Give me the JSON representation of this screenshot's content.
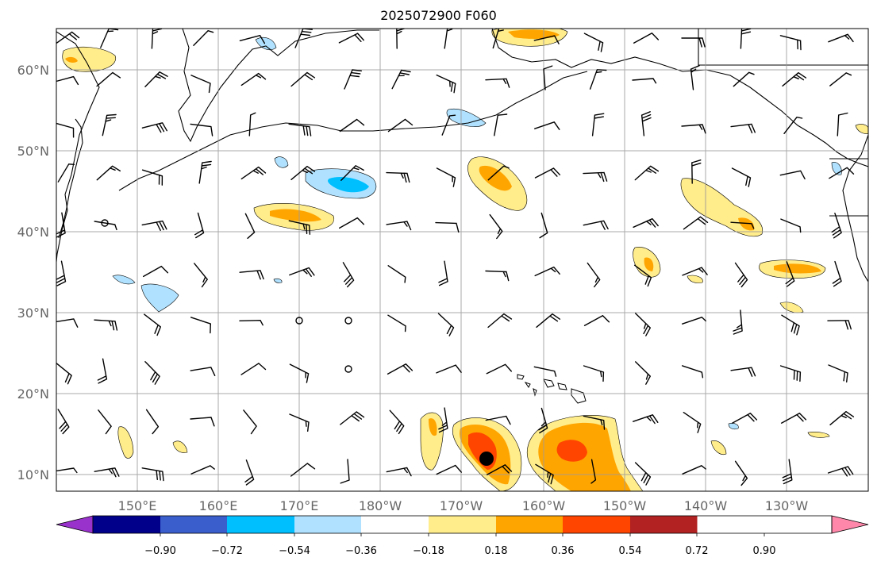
{
  "title": "2025072900 F060",
  "map": {
    "lon_ticks": [
      "150°E",
      "160°E",
      "170°E",
      "180°W",
      "170°W",
      "160°W",
      "150°W",
      "140°W",
      "130°W"
    ],
    "lat_ticks": [
      "60°N",
      "50°N",
      "40°N",
      "30°N",
      "20°N",
      "10°N"
    ],
    "grid": true,
    "gridline_color": "#999999",
    "storm_center_marker": "black-dot"
  },
  "colorbar": {
    "ticks": [
      "−0.90",
      "−0.72",
      "−0.54",
      "−0.36",
      "−0.18",
      "0.18",
      "0.36",
      "0.54",
      "0.72",
      "0.90"
    ],
    "colors": [
      "#9932CC",
      "#00008B",
      "#3A5FCD",
      "#00BFFF",
      "#B0E2FF",
      "#FFFFFF",
      "#FFEC8B",
      "#FFA500",
      "#FF4500",
      "#B22222",
      "#FF88AA"
    ],
    "extend": "both"
  },
  "colors": {
    "light_pos": "#FFEC8B",
    "mid_pos": "#FFA500",
    "strong_pos": "#FF4500",
    "light_neg": "#B0E2FF",
    "mid_neg": "#00BFFF",
    "coast": "#000000"
  }
}
